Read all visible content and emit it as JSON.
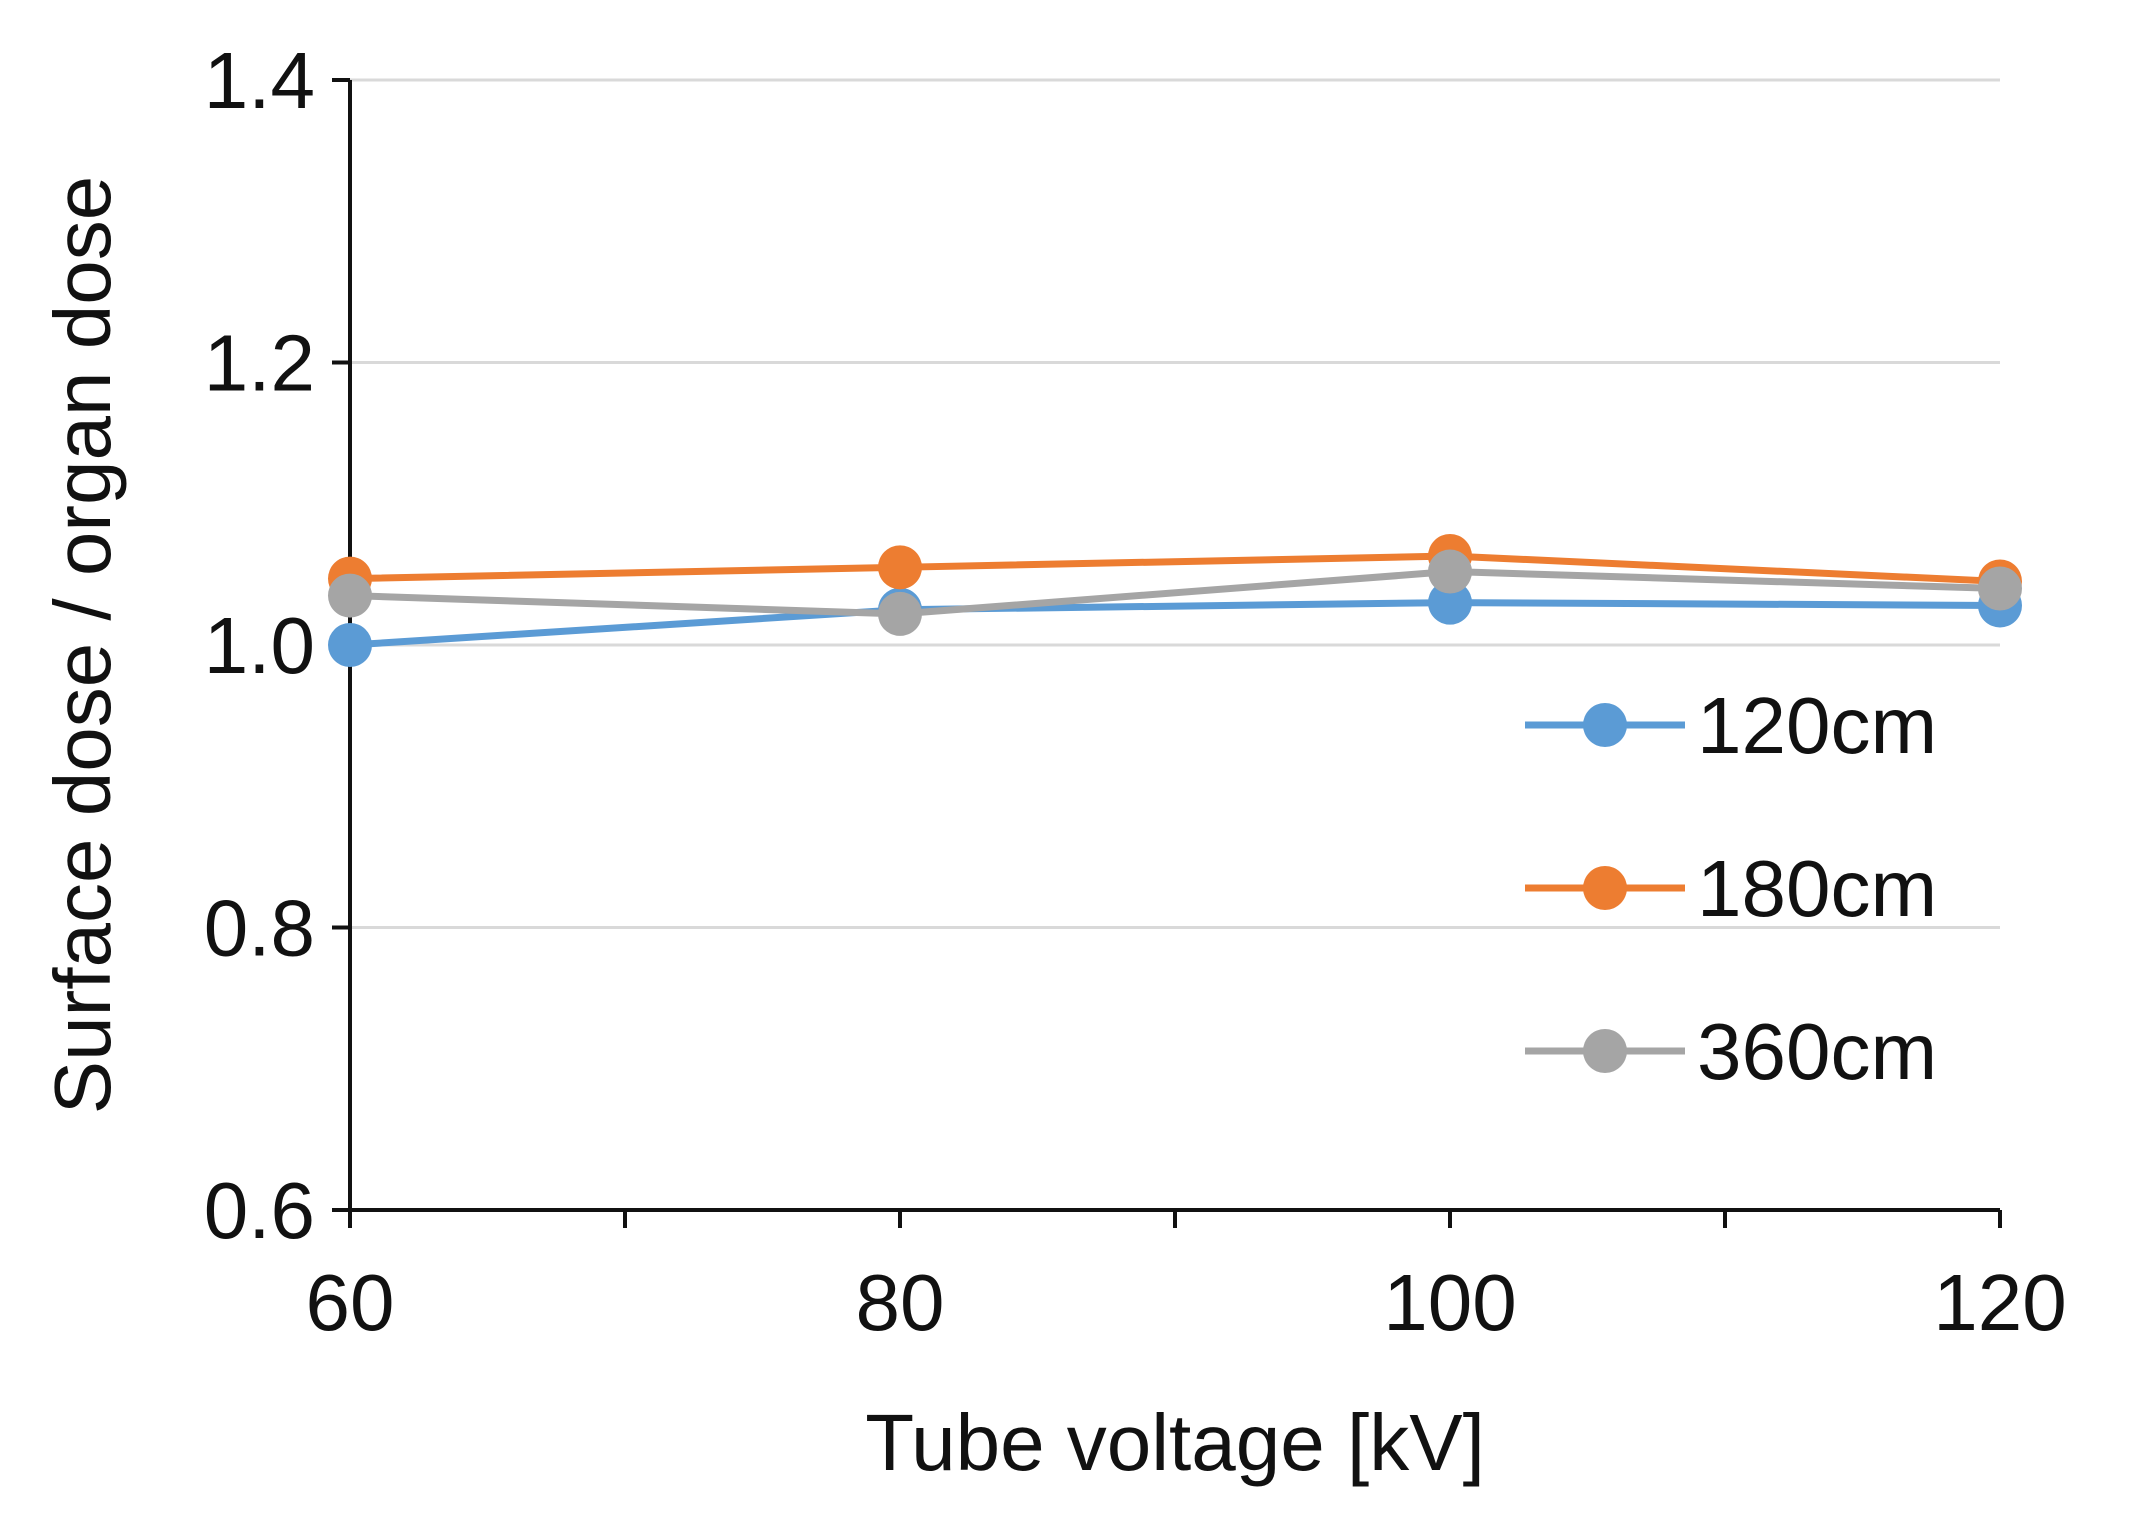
{
  "chart_data": {
    "type": "line",
    "title": "",
    "xlabel": "Tube voltage [kV]",
    "ylabel": "Surface dose / organ  dose",
    "x": [
      60,
      80,
      100,
      120
    ],
    "xlim": [
      60,
      120
    ],
    "x_ticks": [
      60,
      80,
      100,
      120
    ],
    "x_tick_labels": [
      "60",
      "80",
      "100",
      "120"
    ],
    "ylim": [
      0.6,
      1.4
    ],
    "y_ticks": [
      0.6,
      0.8,
      1.0,
      1.2,
      1.4
    ],
    "y_tick_labels": [
      "0.6",
      "0.8",
      "1.0",
      "1.2",
      "1.4"
    ],
    "grid": "horizontal",
    "legend_position": "right",
    "series": [
      {
        "name": "120cm",
        "color": "#5B9BD5",
        "values": [
          1.0,
          1.025,
          1.03,
          1.028
        ]
      },
      {
        "name": "180cm",
        "color": "#ED7D31",
        "values": [
          1.047,
          1.055,
          1.063,
          1.045
        ]
      },
      {
        "name": "360cm",
        "color": "#A5A5A5",
        "values": [
          1.035,
          1.022,
          1.052,
          1.04
        ]
      }
    ]
  }
}
